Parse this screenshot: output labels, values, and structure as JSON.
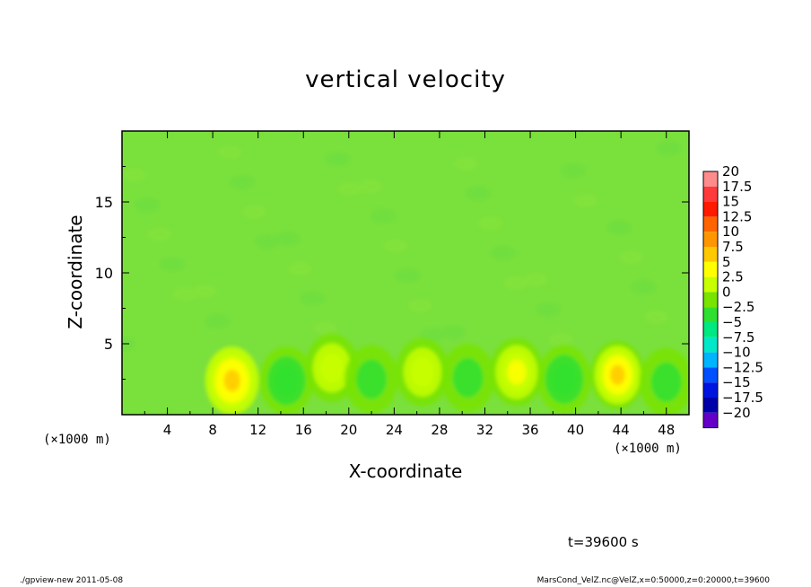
{
  "chart_data": {
    "type": "heatmap",
    "title": "vertical velocity",
    "xlabel": "X-coordinate",
    "ylabel": "Z-coordinate",
    "x_unit": "(×1000 m)",
    "xlim": [
      0,
      50
    ],
    "ylim": [
      0,
      20
    ],
    "x_ticks": [
      "4",
      "8",
      "12",
      "16",
      "20",
      "24",
      "28",
      "32",
      "36",
      "40",
      "44",
      "48"
    ],
    "y_ticks": [
      "5",
      "10",
      "15"
    ],
    "colorbar": {
      "labels": [
        "20",
        "17.5",
        "15",
        "12.5",
        "10",
        "7.5",
        "5",
        "2.5",
        "0",
        "−2.5",
        "−5",
        "−7.5",
        "−10",
        "−12.5",
        "−15",
        "−17.5",
        "−20"
      ],
      "colors": [
        "#ff8c8c",
        "#ff3a3a",
        "#ff1a00",
        "#ff6400",
        "#ff9600",
        "#ffc800",
        "#ffff00",
        "#c8ff00",
        "#78e400",
        "#30e030",
        "#00e880",
        "#00e8c8",
        "#00b4ff",
        "#0050ff",
        "#0014e0",
        "#0000a8",
        "#6400c8"
      ]
    },
    "features": [
      {
        "x": 9.7,
        "z": 2.4,
        "w": 6.5,
        "kind": "updraft"
      },
      {
        "x": 14.5,
        "z": 2.4,
        "w": -3.0,
        "kind": "downdraft"
      },
      {
        "x": 18.5,
        "z": 3.3,
        "w": 3.5,
        "kind": "updraft"
      },
      {
        "x": 22.0,
        "z": 2.5,
        "w": -1.5,
        "kind": "downdraft"
      },
      {
        "x": 26.5,
        "z": 3.0,
        "w": 2.8,
        "kind": "updraft"
      },
      {
        "x": 30.5,
        "z": 2.6,
        "w": -1.5,
        "kind": "downdraft"
      },
      {
        "x": 34.8,
        "z": 3.0,
        "w": 4.0,
        "kind": "updraft"
      },
      {
        "x": 39.0,
        "z": 2.5,
        "w": -2.5,
        "kind": "downdraft"
      },
      {
        "x": 43.7,
        "z": 2.8,
        "w": 7.0,
        "kind": "updraft"
      },
      {
        "x": 48.0,
        "z": 2.3,
        "w": -1.5,
        "kind": "downdraft"
      }
    ],
    "time": "t=39600 s"
  },
  "footer": {
    "left": "./gpview-new   2011-05-08",
    "right": "MarsCond_VelZ.nc@VelZ,x=0:50000,z=0:20000,t=39600"
  }
}
